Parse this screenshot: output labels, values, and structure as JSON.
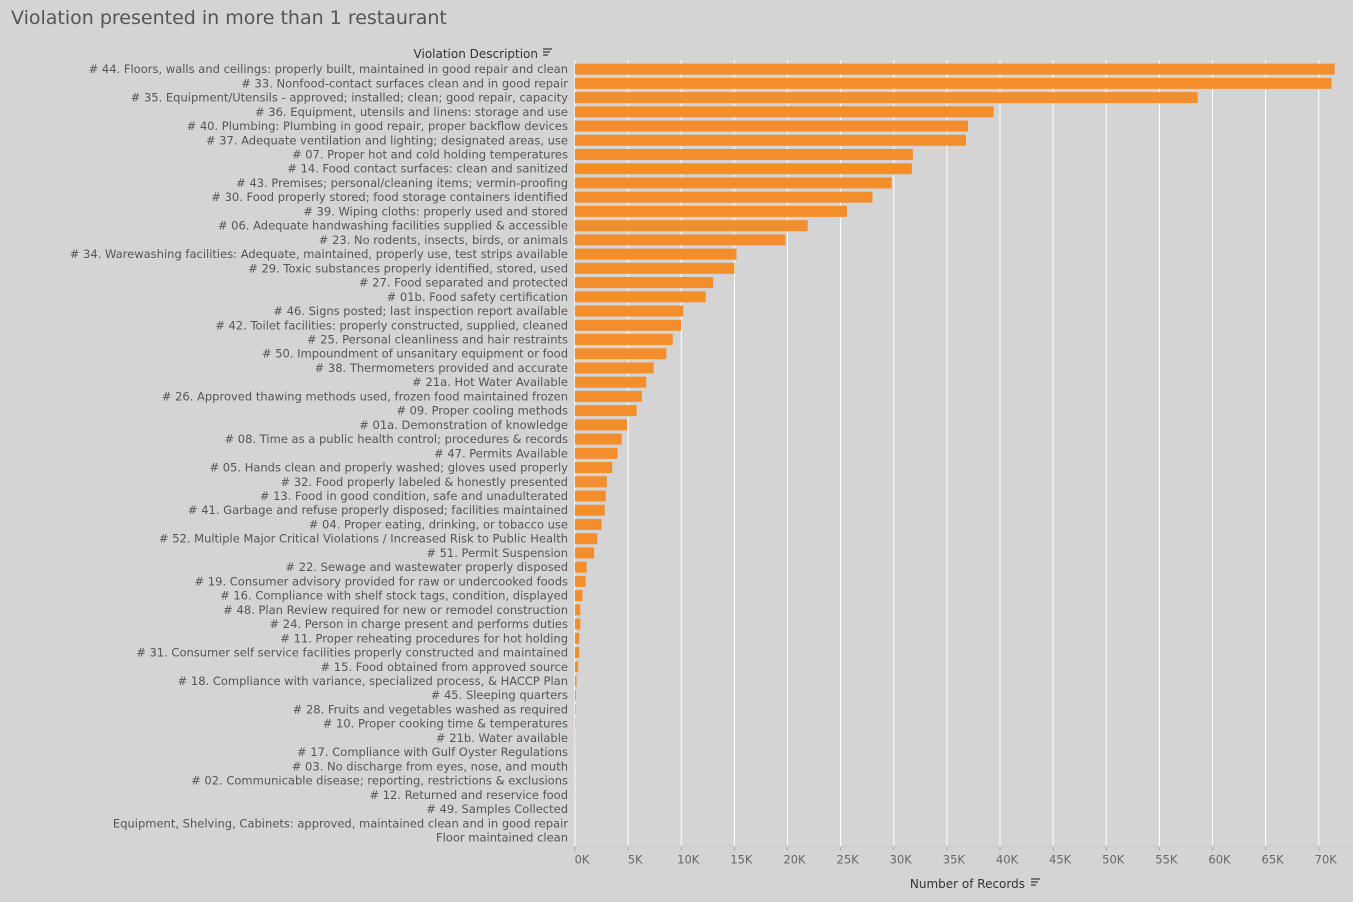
{
  "chart_data": {
    "type": "bar",
    "orientation": "horizontal",
    "title": "Violation presented in more than 1 restaurant",
    "ylabel": "Violation Description",
    "xlabel": "Number of Records",
    "xlim": [
      0,
      72000
    ],
    "x_ticks": [
      0,
      5000,
      10000,
      15000,
      20000,
      25000,
      30000,
      35000,
      40000,
      45000,
      50000,
      55000,
      60000,
      65000,
      70000
    ],
    "x_tick_labels": [
      "0K",
      "5K",
      "10K",
      "15K",
      "20K",
      "25K",
      "30K",
      "35K",
      "40K",
      "45K",
      "50K",
      "55K",
      "60K",
      "65K",
      "70K"
    ],
    "grid": true,
    "sort_icon": "sort-descending-icon",
    "bar_color": "#f28e2c",
    "categories": [
      "# 44. Floors, walls and ceilings: properly built, maintained in good repair and clean",
      "# 33. Nonfood-contact surfaces clean and in good repair",
      "# 35. Equipment/Utensils - approved; installed; clean; good repair, capacity",
      "# 36. Equipment, utensils and linens: storage and use",
      "# 40. Plumbing: Plumbing in good repair, proper backflow devices",
      "# 37. Adequate ventilation and lighting; designated areas, use",
      "# 07. Proper hot and cold holding temperatures",
      "# 14. Food contact surfaces: clean and sanitized",
      "# 43. Premises; personal/cleaning items; vermin-proofing",
      "# 30. Food properly stored; food storage containers identified",
      "# 39. Wiping cloths: properly used and stored",
      "# 06. Adequate handwashing facilities supplied & accessible",
      "# 23. No rodents, insects, birds, or animals",
      "# 34. Warewashing facilities: Adequate, maintained, properly use, test strips available",
      "# 29. Toxic substances properly identified, stored, used",
      "# 27. Food separated and protected",
      "# 01b. Food safety certification",
      "# 46. Signs posted; last inspection report available",
      "# 42. Toilet facilities: properly constructed, supplied, cleaned",
      "# 25. Personal cleanliness and hair restraints",
      "# 50. Impoundment of unsanitary equipment or food",
      "# 38. Thermometers provided and accurate",
      "# 21a. Hot Water Available",
      "# 26. Approved thawing methods used, frozen food maintained frozen",
      "# 09. Proper cooling methods",
      "# 01a. Demonstration of knowledge",
      "# 08. Time as a public health control; procedures & records",
      "# 47. Permits Available",
      "# 05. Hands clean and properly washed; gloves used properly",
      "# 32. Food properly labeled & honestly presented",
      "# 13. Food in good condition, safe and unadulterated",
      "# 41. Garbage and refuse properly disposed; facilities maintained",
      "# 04. Proper eating, drinking, or tobacco use",
      "# 52. Multiple Major Critical Violations / Increased Risk to Public Health",
      "# 51. Permit Suspension",
      "# 22. Sewage and wastewater properly disposed",
      "# 19. Consumer advisory provided for raw or undercooked foods",
      "# 16. Compliance with shelf stock tags, condition, displayed",
      "# 48. Plan Review required for new or remodel construction",
      "# 24. Person in charge present and performs duties",
      "# 11. Proper reheating procedures for hot holding",
      "# 31. Consumer self service facilities properly constructed and maintained",
      "# 15. Food obtained from approved source",
      "# 18. Compliance with variance, specialized process, & HACCP Plan",
      "# 45. Sleeping quarters",
      "# 28. Fruits and vegetables washed as required",
      "# 10. Proper cooking time & temperatures",
      "# 21b. Water available",
      "# 17. Compliance with Gulf Oyster Regulations",
      "# 03. No discharge from eyes, nose, and mouth",
      "# 02. Communicable disease; reporting, restrictions & exclusions",
      "# 12. Returned and reservice food",
      "# 49. Samples Collected",
      "Equipment, Shelving, Cabinets: approved, maintained clean and in good repair",
      "Floor maintained clean"
    ],
    "values": [
      71500,
      71200,
      58600,
      39400,
      37000,
      36800,
      31800,
      31700,
      29800,
      28000,
      25600,
      21900,
      19800,
      15200,
      15000,
      13000,
      12300,
      10200,
      10000,
      9200,
      8600,
      7400,
      6700,
      6300,
      5800,
      4900,
      4400,
      4000,
      3500,
      3000,
      2900,
      2800,
      2500,
      2100,
      1800,
      1100,
      1000,
      700,
      500,
      500,
      400,
      400,
      300,
      150,
      80,
      40,
      30,
      20,
      15,
      10,
      10,
      8,
      5,
      3,
      2
    ]
  }
}
